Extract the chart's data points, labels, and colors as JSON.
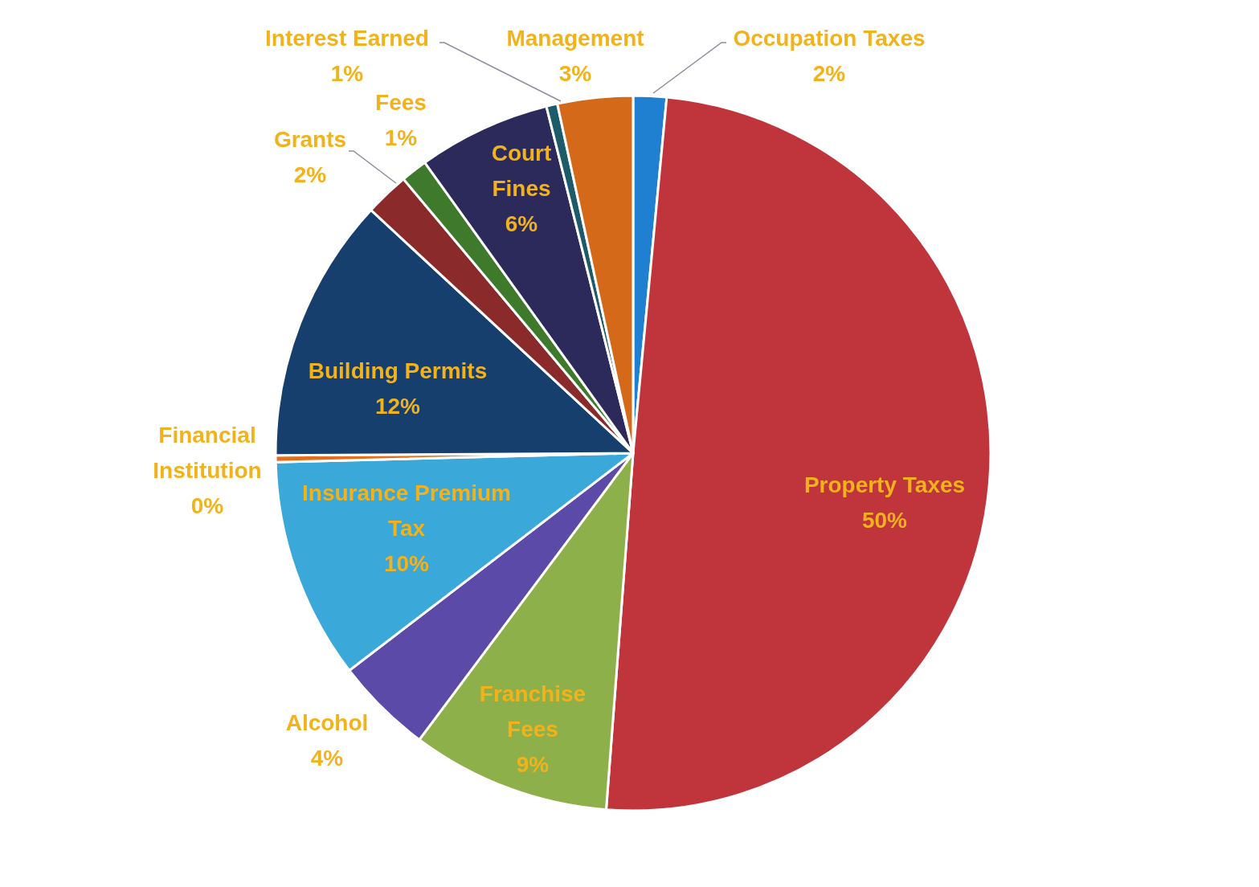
{
  "chart_data": {
    "type": "pie",
    "categories": [
      "Occupation Taxes",
      "Property Taxes",
      "Franchise Fees",
      "Alcohol",
      "Insurance Premium Tax",
      "Financial Institution",
      "Building Permits",
      "Grants",
      "Fees",
      "Court Fines",
      "Interest Earned",
      "Management"
    ],
    "values": [
      1.5,
      49.7,
      9.0,
      4.4,
      10.0,
      0.3,
      12.0,
      2.0,
      1.2,
      6.0,
      0.5,
      3.4
    ],
    "value_labels": [
      "2%",
      "50%",
      "9%",
      "4%",
      "10%",
      "0%",
      "12%",
      "2%",
      "1%",
      "6%",
      "1%",
      "3%"
    ],
    "colors": [
      "#1f7fd0",
      "#c0343c",
      "#8db04a",
      "#5b4aa8",
      "#3aa8d8",
      "#e07020",
      "#163f6e",
      "#8b2a2a",
      "#3f7a2c",
      "#2b2a5a",
      "#1d5a6a",
      "#d4691a"
    ]
  }
}
